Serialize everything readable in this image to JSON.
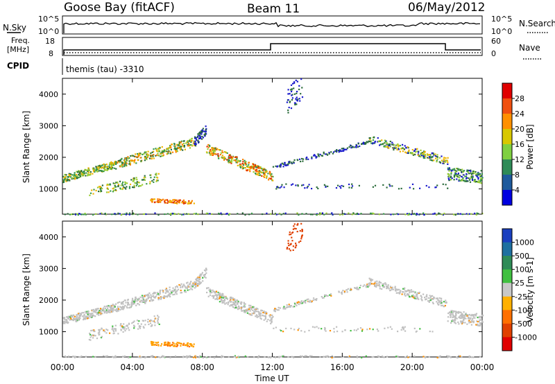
{
  "header": {
    "station": "Goose Bay (fitACF)",
    "beam": "Beam 11",
    "date": "06/May/2012"
  },
  "top_panel": {
    "left_label": "N.Sky",
    "left_ticks": [
      "10^5",
      "10^0"
    ],
    "right_ticks": [
      "10^5",
      "10^0"
    ],
    "right_label": "N.Search"
  },
  "freq_panel": {
    "left_label_1": "Freq.",
    "left_label_2": "[MHz]",
    "left_ticks": [
      "18",
      "8"
    ],
    "right_ticks": [
      "60",
      "0"
    ],
    "right_label": "Nave"
  },
  "cpid": {
    "label": "CPID",
    "value": "themis (tau) -3310"
  },
  "colors": {
    "scatter_power": [
      "#1a1acc",
      "#2a6b3a",
      "#3a9a4a",
      "#9acd32",
      "#f0b400",
      "#ff8000",
      "#e03000"
    ],
    "velocity_gray": "#c0c0c0"
  },
  "chart_data": [
    {
      "type": "heatmap",
      "name": "power",
      "ylabel": "Slant Range [km]",
      "ylim": [
        200,
        4500
      ],
      "y_ticks": [
        "1000",
        "2000",
        "3000",
        "4000"
      ],
      "colorbar": {
        "label": "Power [dB]",
        "ticks": [
          "28",
          "24",
          "20",
          "16",
          "12",
          "8",
          "4"
        ],
        "colors": [
          "#e00000",
          "#f05010",
          "#ff9000",
          "#d8c800",
          "#7fd040",
          "#2e8b57",
          "#1e5a9c",
          "#0000e0"
        ]
      },
      "x_ticks": [
        "00:00",
        "04:00",
        "08:00",
        "12:00",
        "16:00",
        "20:00",
        "00:00"
      ],
      "xlim": [
        0,
        24
      ]
    },
    {
      "type": "heatmap",
      "name": "velocity",
      "ylabel": "Slant Range [km]",
      "xlabel": "Time UT",
      "ylim": [
        200,
        4500
      ],
      "y_ticks": [
        "1000",
        "2000",
        "3000",
        "4000"
      ],
      "colorbar": {
        "label": "Velocity [m s-1]",
        "ticks": [
          "1000",
          "500",
          "100",
          "25",
          "-25",
          "-100",
          "-500",
          "-1000"
        ],
        "colors": [
          "#1a3fbf",
          "#1e70a0",
          "#2e8b57",
          "#40c040",
          "#c8c8c8",
          "#ffb000",
          "#ff7000",
          "#e04000",
          "#e00000"
        ]
      },
      "x_ticks": [
        "00:00",
        "04:00",
        "08:00",
        "12:00",
        "16:00",
        "20:00",
        "00:00"
      ],
      "xlim": [
        0,
        24
      ]
    }
  ]
}
